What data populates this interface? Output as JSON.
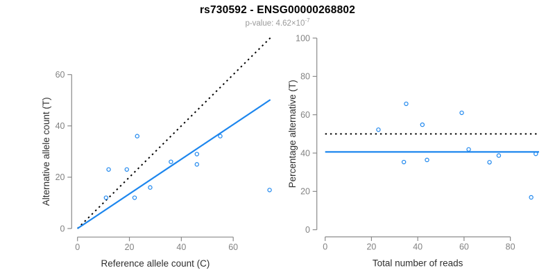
{
  "header": {
    "title": "rs730592 - ENSG00000268802",
    "subtitle_prefix": "p-value: 4.62×10",
    "subtitle_exponent": "-7"
  },
  "colors": {
    "point_blue": "#1C86EE",
    "line_blue": "#1C86EE",
    "dotted_black": "#000000",
    "axis_gray": "#8A8A8A",
    "tick_label_gray": "#828282",
    "axis_title_dark": "#2F2F2F",
    "title_black": "#000000",
    "subtitle_gray": "#9A9A9A",
    "background": "#FFFFFF"
  },
  "chart_data": [
    {
      "type": "scatter",
      "panel": "left",
      "xlabel": "Reference allele count (C)",
      "ylabel": "Alternative allele count (T)",
      "xlim": [
        0,
        74.3
      ],
      "ylim": [
        0,
        74.3
      ],
      "xticks": [
        0,
        20,
        40,
        60
      ],
      "yticks": [
        0,
        20,
        40,
        60
      ],
      "grid": false,
      "legend": false,
      "points": [
        [
          12,
          23
        ],
        [
          19,
          23
        ],
        [
          11,
          12
        ],
        [
          22,
          12
        ],
        [
          23,
          36
        ],
        [
          28,
          16
        ],
        [
          36,
          26
        ],
        [
          46,
          29
        ],
        [
          46,
          25
        ],
        [
          55,
          36
        ],
        [
          74,
          15
        ]
      ],
      "lines": [
        {
          "name": "identity-line",
          "style": "dotted",
          "color": "#000000",
          "x1": 0,
          "y1": 0,
          "x2": 74.3,
          "y2": 74.3
        },
        {
          "name": "fit-line",
          "style": "solid",
          "color": "#1C86EE",
          "x1": 0,
          "y1": 0,
          "x2": 74.3,
          "y2": 50.2
        }
      ]
    },
    {
      "type": "scatter",
      "panel": "right",
      "xlabel": "Total number of reads",
      "ylabel": "Percentage alternative (T)",
      "xlim": [
        0,
        92.4
      ],
      "ylim": [
        0,
        100
      ],
      "xticks": [
        0,
        20,
        40,
        60,
        80
      ],
      "yticks": [
        0,
        20,
        40,
        60,
        80,
        100
      ],
      "grid": false,
      "legend": false,
      "points": [
        [
          35,
          65.7
        ],
        [
          42,
          54.8
        ],
        [
          23,
          52.2
        ],
        [
          34,
          35.3
        ],
        [
          59,
          61.0
        ],
        [
          44,
          36.4
        ],
        [
          62,
          41.9
        ],
        [
          75,
          38.7
        ],
        [
          71,
          35.2
        ],
        [
          91,
          39.6
        ],
        [
          89,
          16.9
        ]
      ],
      "lines": [
        {
          "name": "fifty-percent-line",
          "style": "dotted",
          "color": "#000000",
          "x1": 0,
          "y1": 50,
          "x2": 92.4,
          "y2": 50
        },
        {
          "name": "mean-percentage-line",
          "style": "solid",
          "color": "#1C86EE",
          "x1": 0,
          "y1": 40.6,
          "x2": 92.4,
          "y2": 40.6
        }
      ]
    }
  ]
}
